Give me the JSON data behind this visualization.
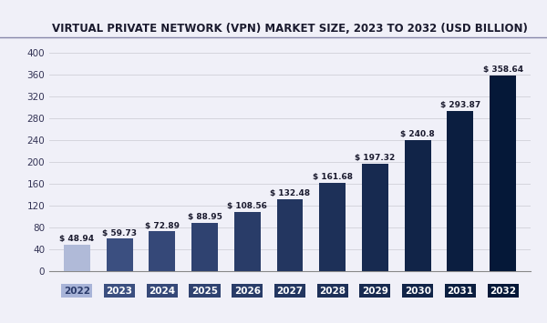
{
  "title": "VIRTUAL PRIVATE NETWORK (VPN) MARKET SIZE, 2023 TO 2032 (USD BILLION)",
  "years": [
    "2022",
    "2023",
    "2024",
    "2025",
    "2026",
    "2027",
    "2028",
    "2029",
    "2030",
    "2031",
    "2032"
  ],
  "values": [
    48.94,
    59.73,
    72.89,
    88.95,
    108.56,
    132.48,
    161.68,
    197.32,
    240.8,
    293.87,
    358.64
  ],
  "bar_colors": [
    "#b0bad8",
    "#3b4f80",
    "#354878",
    "#2f4270",
    "#293c68",
    "#233660",
    "#1d3058",
    "#172a50",
    "#112448",
    "#0b1e40",
    "#051838"
  ],
  "tick_box_colors": [
    "#a8b4d8",
    "#3b4f80",
    "#354878",
    "#2f4270",
    "#293c68",
    "#233660",
    "#1d3058",
    "#172a50",
    "#112448",
    "#0b1e40",
    "#051838"
  ],
  "labels": [
    "$ 48.94",
    "$ 59.73",
    "$ 72.89",
    "$ 88.95",
    "$ 108.56",
    "$ 132.48",
    "$ 161.68",
    "$ 197.32",
    "$ 240.8",
    "$ 293.87",
    "$ 358.64"
  ],
  "ylim": [
    0,
    420
  ],
  "yticks": [
    0,
    40,
    80,
    120,
    160,
    200,
    240,
    280,
    320,
    360,
    400
  ],
  "background_color": "#f0f0f8",
  "plot_bg_color": "#f0f0f8",
  "title_bg_color": "#f0f0f8",
  "grid_color": "#d0d0d8",
  "title_fontsize": 8.5,
  "bar_label_fontsize": 6.5,
  "tick_label_fontsize": 7.5,
  "title_color": "#1a1a2e",
  "label_color": "#1a1a2e"
}
